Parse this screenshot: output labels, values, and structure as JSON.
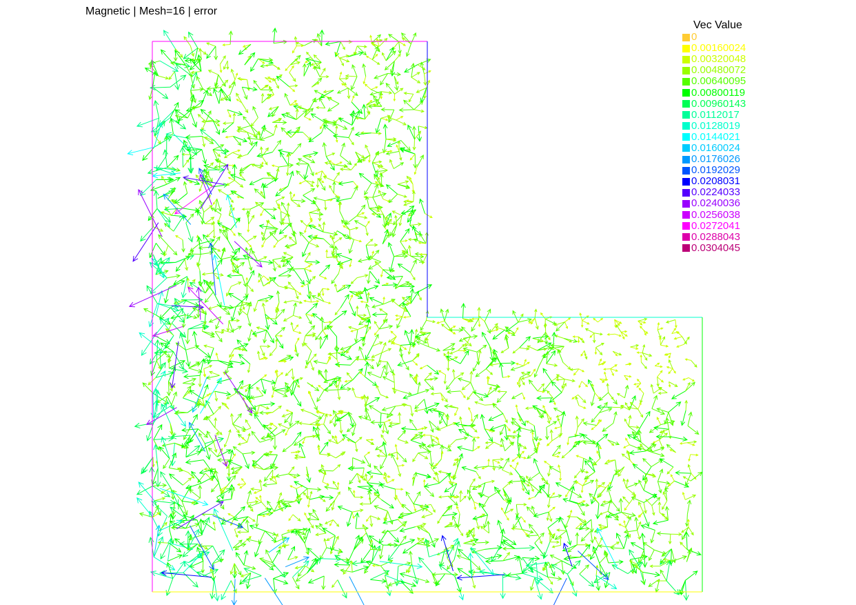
{
  "title": "Magnetic | Mesh=16 | error",
  "legend": {
    "title": "Vec Value",
    "items": [
      {
        "label": "0",
        "color": "#ffcc33"
      },
      {
        "label": "0.00160024",
        "color": "#ffff00"
      },
      {
        "label": "0.00320048",
        "color": "#ccff00"
      },
      {
        "label": "0.00480072",
        "color": "#99ff00"
      },
      {
        "label": "0.00640095",
        "color": "#55ff00"
      },
      {
        "label": "0.00800119",
        "color": "#00ff00"
      },
      {
        "label": "0.00960143",
        "color": "#00ff55"
      },
      {
        "label": "0.0112017",
        "color": "#00ff99"
      },
      {
        "label": "0.0128019",
        "color": "#00ffcc"
      },
      {
        "label": "0.0144021",
        "color": "#00ffff"
      },
      {
        "label": "0.0160024",
        "color": "#00ccff"
      },
      {
        "label": "0.0176026",
        "color": "#0099ff"
      },
      {
        "label": "0.0192029",
        "color": "#0055ff"
      },
      {
        "label": "0.0208031",
        "color": "#0000ff"
      },
      {
        "label": "0.0224033",
        "color": "#5500ff"
      },
      {
        "label": "0.0240036",
        "color": "#9900ff"
      },
      {
        "label": "0.0256038",
        "color": "#cc00ff"
      },
      {
        "label": "0.0272041",
        "color": "#ff00ff"
      },
      {
        "label": "0.0288043",
        "color": "#dd00aa"
      },
      {
        "label": "0.0304045",
        "color": "#bb0077"
      }
    ]
  },
  "domain": {
    "shape": "L-shaped",
    "boundary_colors": {
      "left": "#ff00ff",
      "top": "#ff00ff",
      "inner_vertical": "#0000ff",
      "inner_horizontal": "#00ffcc",
      "right": "#00ff00",
      "bottom": "#ffff00"
    }
  }
}
